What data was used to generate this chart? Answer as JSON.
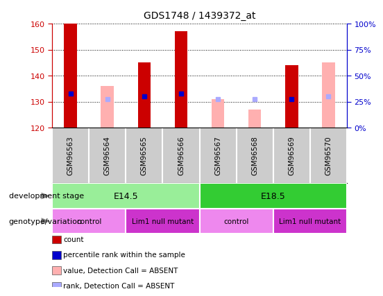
{
  "title": "GDS1748 / 1439372_at",
  "samples": [
    "GSM96563",
    "GSM96564",
    "GSM96565",
    "GSM96566",
    "GSM96567",
    "GSM96568",
    "GSM96569",
    "GSM96570"
  ],
  "red_bars": [
    160,
    null,
    145,
    157,
    null,
    null,
    144,
    null
  ],
  "pink_bars": [
    null,
    136,
    null,
    null,
    131,
    127,
    null,
    145
  ],
  "blue_dots": [
    133,
    null,
    132,
    133,
    null,
    null,
    131,
    null
  ],
  "lightblue_dots": [
    null,
    131,
    null,
    null,
    131,
    131,
    null,
    132
  ],
  "ylim": [
    120,
    160
  ],
  "yticks_left": [
    120,
    130,
    140,
    150,
    160
  ],
  "yticks_right": [
    0,
    25,
    50,
    75,
    100
  ],
  "red_color": "#cc0000",
  "pink_color": "#ffb0b0",
  "blue_color": "#0000cc",
  "lightblue_color": "#aaaaff",
  "bg_white": "#ffffff",
  "bg_gray": "#cccccc",
  "dev_stage_groups": [
    {
      "label": "E14.5",
      "start": 0,
      "end": 4,
      "color": "#99ee99"
    },
    {
      "label": "E18.5",
      "start": 4,
      "end": 8,
      "color": "#33cc33"
    }
  ],
  "genotype_groups": [
    {
      "label": "control",
      "start": 0,
      "end": 2,
      "color": "#ee88ee"
    },
    {
      "label": "Lim1 null mutant",
      "start": 2,
      "end": 4,
      "color": "#cc33cc"
    },
    {
      "label": "control",
      "start": 4,
      "end": 6,
      "color": "#ee88ee"
    },
    {
      "label": "Lim1 null mutant",
      "start": 6,
      "end": 8,
      "color": "#cc33cc"
    }
  ],
  "legend_items": [
    {
      "label": "count",
      "color": "#cc0000"
    },
    {
      "label": "percentile rank within the sample",
      "color": "#0000cc"
    },
    {
      "label": "value, Detection Call = ABSENT",
      "color": "#ffb0b0"
    },
    {
      "label": "rank, Detection Call = ABSENT",
      "color": "#aaaaff"
    }
  ],
  "row_label_dev": "development stage",
  "row_label_geno": "genotype/variation",
  "bar_width": 0.35
}
